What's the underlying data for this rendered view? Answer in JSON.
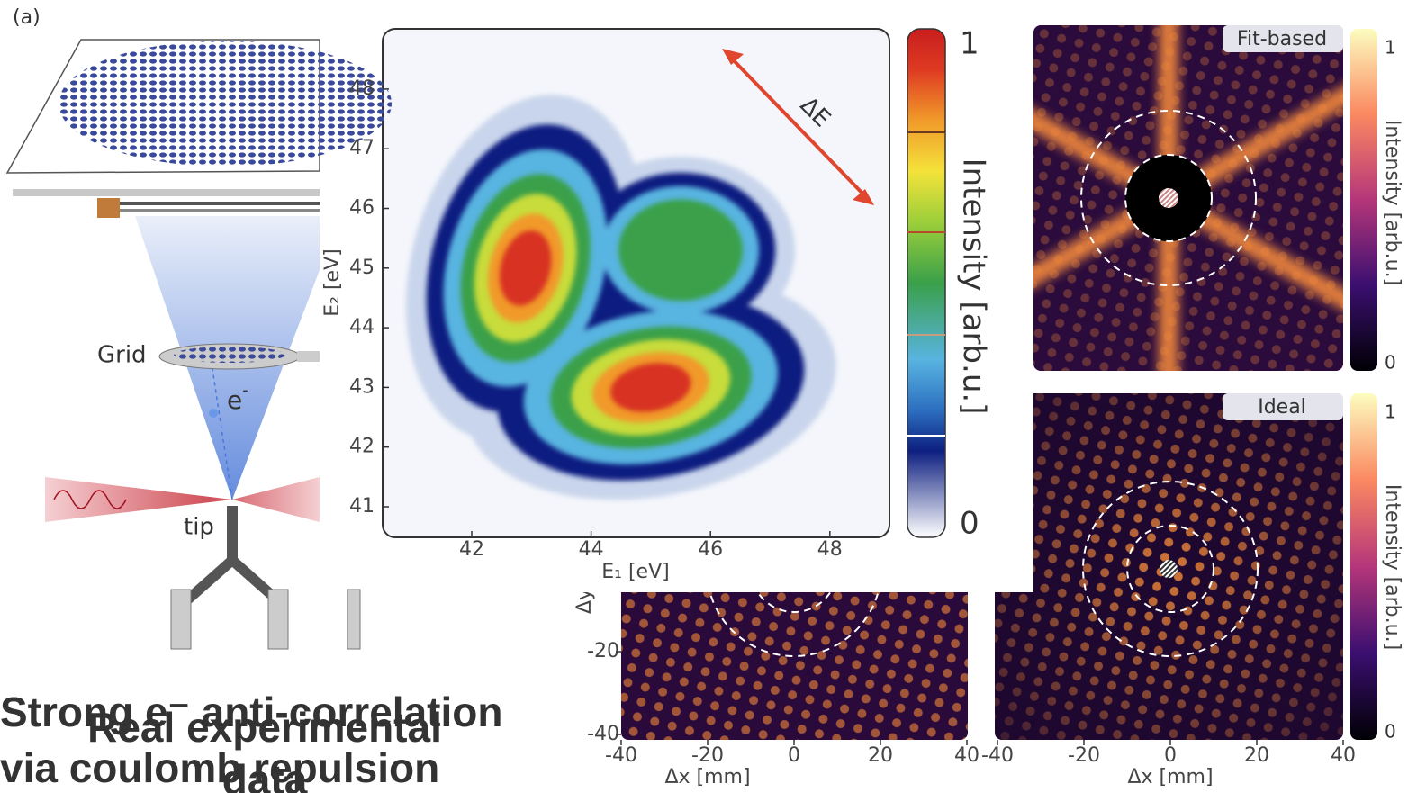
{
  "panel_label": "(a)",
  "schematic": {
    "grid_label": "Grid",
    "electron_label": "e",
    "electron_charge": "-",
    "tip_label": "tip"
  },
  "energy_map": {
    "x_label": "E₁ [eV]",
    "y_label": "E₂ [eV]",
    "x_ticks": [
      42,
      44,
      46,
      48
    ],
    "y_ticks": [
      41,
      42,
      43,
      44,
      45,
      46,
      47,
      48
    ],
    "annotation": "ΔE",
    "colorbar_label": "Intensity [arb.u.]",
    "colorbar_ticks": [
      0,
      1
    ]
  },
  "fit_image": {
    "tag": "Fit-based",
    "colorbar_label": "Intensity [arb.u.]",
    "colorbar_ticks": [
      0,
      1
    ]
  },
  "ideal_image": {
    "tag": "Ideal",
    "colorbar_label": "Intensity [arb.u.]",
    "colorbar_ticks": [
      0,
      1
    ]
  },
  "detector_axes": {
    "x_label": "Δx [mm]",
    "y_label": "Δy",
    "x_ticks": [
      -40,
      -20,
      0,
      20,
      40
    ],
    "y_ticks": [
      -20,
      -40
    ]
  },
  "overlay_text": {
    "red": [
      "Strong e⁻ anti-correlation",
      "via coulomb repulsion"
    ],
    "blue": [
      "Real experimental",
      "data"
    ]
  }
}
